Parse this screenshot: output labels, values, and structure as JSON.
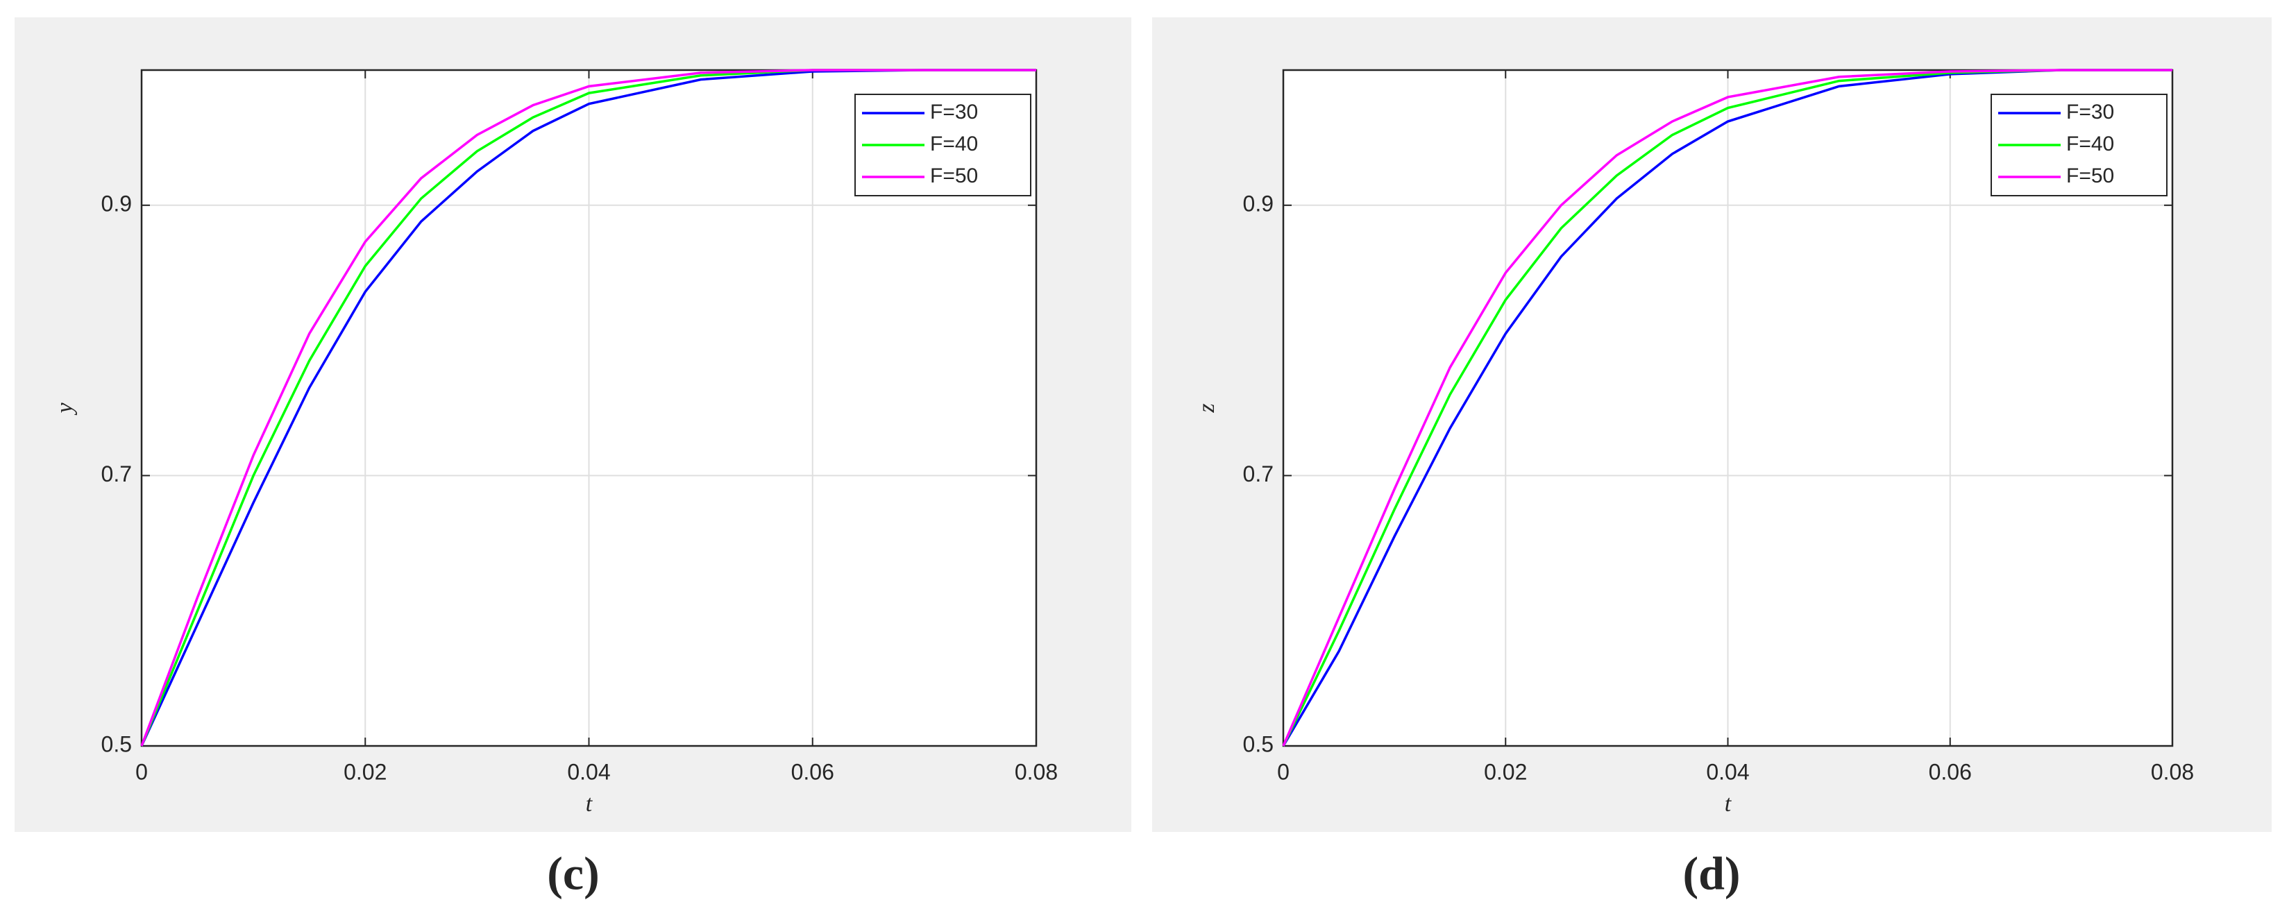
{
  "chart_data": [
    {
      "type": "line",
      "caption": "(c)",
      "xlabel": "t",
      "ylabel": "y",
      "x": [
        0,
        0.005,
        0.01,
        0.015,
        0.02,
        0.025,
        0.03,
        0.035,
        0.04,
        0.05,
        0.06,
        0.07,
        0.08
      ],
      "series": [
        {
          "name": "F=30",
          "color": "#0000ff",
          "values": [
            0.5,
            0.59,
            0.68,
            0.765,
            0.836,
            0.888,
            0.925,
            0.955,
            0.975,
            0.993,
            0.999,
            1.0,
            1.0
          ]
        },
        {
          "name": "F=40",
          "color": "#00ff00",
          "values": [
            0.5,
            0.6,
            0.7,
            0.785,
            0.855,
            0.905,
            0.94,
            0.965,
            0.983,
            0.996,
            1.0,
            1.0,
            1.0
          ]
        },
        {
          "name": "F=50",
          "color": "#ff00ff",
          "values": [
            0.5,
            0.61,
            0.715,
            0.805,
            0.873,
            0.92,
            0.952,
            0.974,
            0.988,
            0.998,
            1.0,
            1.0,
            1.0
          ]
        }
      ],
      "xlim": [
        0,
        0.08
      ],
      "ylim": [
        0.5,
        1
      ],
      "xticks": [
        0,
        0.02,
        0.04,
        0.06,
        0.08
      ],
      "yticks": [
        0.5,
        0.7,
        0.9
      ],
      "grid": true,
      "legend": "upper right"
    },
    {
      "type": "line",
      "caption": "(d)",
      "xlabel": "t",
      "ylabel": "z",
      "x": [
        0,
        0.005,
        0.01,
        0.015,
        0.02,
        0.025,
        0.03,
        0.035,
        0.04,
        0.05,
        0.06,
        0.07,
        0.08
      ],
      "series": [
        {
          "name": "F=30",
          "color": "#0000ff",
          "values": [
            0.5,
            0.57,
            0.655,
            0.735,
            0.805,
            0.862,
            0.905,
            0.938,
            0.962,
            0.988,
            0.997,
            1.0,
            1.0
          ]
        },
        {
          "name": "F=40",
          "color": "#00ff00",
          "values": [
            0.5,
            0.585,
            0.675,
            0.76,
            0.83,
            0.883,
            0.922,
            0.952,
            0.972,
            0.992,
            0.998,
            1.0,
            1.0
          ]
        },
        {
          "name": "F=50",
          "color": "#ff00ff",
          "values": [
            0.5,
            0.595,
            0.69,
            0.78,
            0.85,
            0.9,
            0.937,
            0.962,
            0.98,
            0.995,
            0.999,
            1.0,
            1.0
          ]
        }
      ],
      "xlim": [
        0,
        0.08
      ],
      "ylim": [
        0.5,
        1
      ],
      "xticks": [
        0,
        0.02,
        0.04,
        0.06,
        0.08
      ],
      "yticks": [
        0.5,
        0.7,
        0.9
      ],
      "grid": true,
      "legend": "upper right"
    }
  ]
}
